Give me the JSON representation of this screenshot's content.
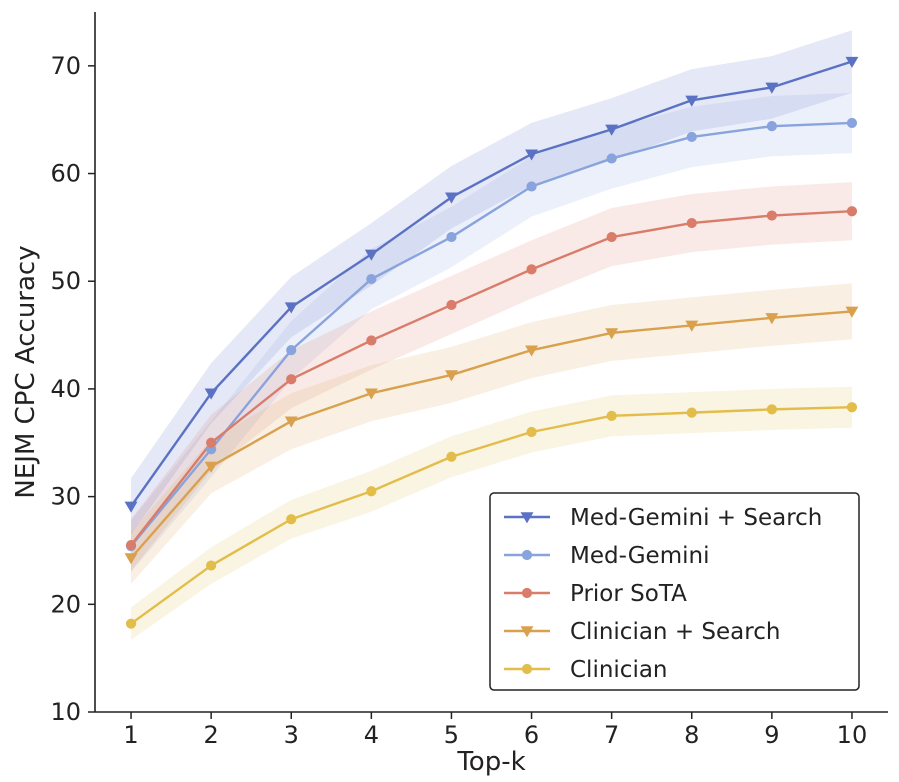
{
  "chart_data": {
    "type": "line",
    "title": "",
    "xlabel": "Top-k",
    "ylabel": "NEJM CPC Accuracy",
    "x": [
      1,
      2,
      3,
      4,
      5,
      6,
      7,
      8,
      9,
      10
    ],
    "xticks": [
      "1",
      "2",
      "3",
      "4",
      "5",
      "6",
      "7",
      "8",
      "9",
      "10"
    ],
    "yticks": [
      "10",
      "20",
      "30",
      "40",
      "50",
      "60",
      "70"
    ],
    "xlim": [
      0.55,
      10.45
    ],
    "ylim": [
      10,
      75
    ],
    "grid": false,
    "legend_position": "lower-right",
    "series": [
      {
        "name": "Med-Gemini + Search",
        "color": "#5b72c4",
        "marker": "triangle-down",
        "values": [
          29.1,
          39.6,
          47.6,
          52.5,
          57.8,
          61.8,
          64.1,
          66.8,
          68.0,
          70.4
        ],
        "band": [
          [
            26.5,
            31.7
          ],
          [
            36.8,
            42.4
          ],
          [
            44.8,
            50.4
          ],
          [
            49.6,
            55.4
          ],
          [
            54.9,
            60.7
          ],
          [
            58.9,
            64.7
          ],
          [
            61.2,
            67.0
          ],
          [
            63.9,
            69.7
          ],
          [
            65.1,
            70.9
          ],
          [
            67.5,
            73.3
          ]
        ]
      },
      {
        "name": "Med-Gemini",
        "color": "#89a3dd",
        "marker": "circle",
        "values": [
          25.4,
          34.4,
          43.6,
          50.2,
          54.1,
          58.8,
          61.4,
          63.4,
          64.4,
          64.7
        ],
        "band": [
          [
            23.0,
            27.8
          ],
          [
            31.8,
            37.0
          ],
          [
            40.9,
            46.3
          ],
          [
            47.4,
            53.0
          ],
          [
            51.3,
            56.9
          ],
          [
            56.0,
            61.6
          ],
          [
            58.6,
            64.2
          ],
          [
            60.6,
            66.2
          ],
          [
            61.6,
            67.2
          ],
          [
            61.9,
            67.5
          ]
        ]
      },
      {
        "name": "Prior SoTA",
        "color": "#d97c6a",
        "marker": "circle",
        "values": [
          25.5,
          35.0,
          40.9,
          44.5,
          47.8,
          51.1,
          54.1,
          55.4,
          56.1,
          56.5
        ],
        "band": [
          [
            23.1,
            27.9
          ],
          [
            32.4,
            37.6
          ],
          [
            38.2,
            43.6
          ],
          [
            41.8,
            47.2
          ],
          [
            45.1,
            50.5
          ],
          [
            48.4,
            53.8
          ],
          [
            51.4,
            56.8
          ],
          [
            52.7,
            58.1
          ],
          [
            53.4,
            58.8
          ],
          [
            53.8,
            59.2
          ]
        ]
      },
      {
        "name": "Clinician + Search",
        "color": "#d9a04e",
        "marker": "triangle-down",
        "values": [
          24.3,
          32.8,
          37.0,
          39.6,
          41.3,
          43.6,
          45.2,
          45.9,
          46.6,
          47.2
        ],
        "band": [
          [
            21.9,
            26.7
          ],
          [
            30.3,
            35.3
          ],
          [
            34.4,
            39.6
          ],
          [
            37.0,
            42.2
          ],
          [
            38.7,
            43.9
          ],
          [
            41.0,
            46.2
          ],
          [
            42.6,
            47.8
          ],
          [
            43.3,
            48.5
          ],
          [
            44.0,
            49.2
          ],
          [
            44.6,
            49.8
          ]
        ]
      },
      {
        "name": "Clinician",
        "color": "#e3bd4a",
        "marker": "circle",
        "values": [
          18.2,
          23.6,
          27.9,
          30.5,
          33.7,
          36.0,
          37.5,
          37.8,
          38.1,
          38.3
        ],
        "band": [
          [
            16.7,
            19.7
          ],
          [
            21.9,
            25.3
          ],
          [
            26.1,
            29.7
          ],
          [
            28.6,
            32.4
          ],
          [
            31.8,
            35.6
          ],
          [
            34.1,
            37.9
          ],
          [
            35.6,
            39.4
          ],
          [
            35.9,
            39.7
          ],
          [
            36.2,
            40.0
          ],
          [
            36.4,
            40.2
          ]
        ]
      }
    ]
  }
}
